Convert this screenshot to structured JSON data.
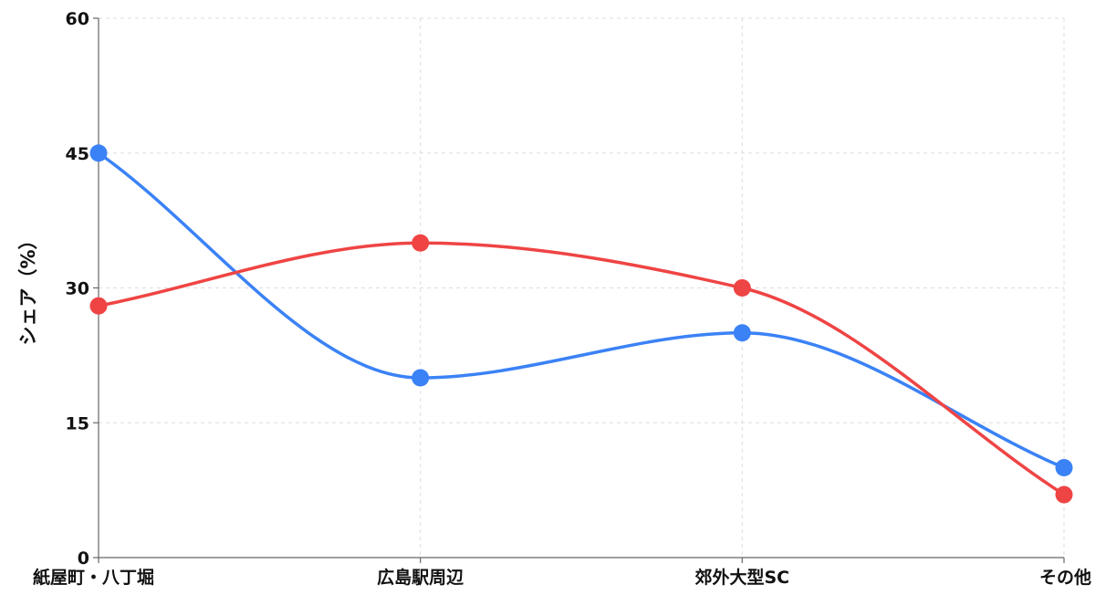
{
  "chart_data": {
    "type": "line",
    "title": "",
    "xlabel": "",
    "ylabel": "シェア（%）",
    "categories": [
      "紙屋町・八丁堀",
      "広島駅周辺",
      "郊外大型SC",
      "その他"
    ],
    "series": [
      {
        "color": "#3b82f6",
        "values": [
          45,
          20,
          25,
          10
        ]
      },
      {
        "color": "#ef4444",
        "values": [
          28,
          35,
          30,
          7
        ]
      }
    ],
    "ylim": [
      0,
      60
    ],
    "yticks": [
      0,
      15,
      30,
      45,
      60
    ],
    "grid": true,
    "smooth": true,
    "legend": "none"
  }
}
